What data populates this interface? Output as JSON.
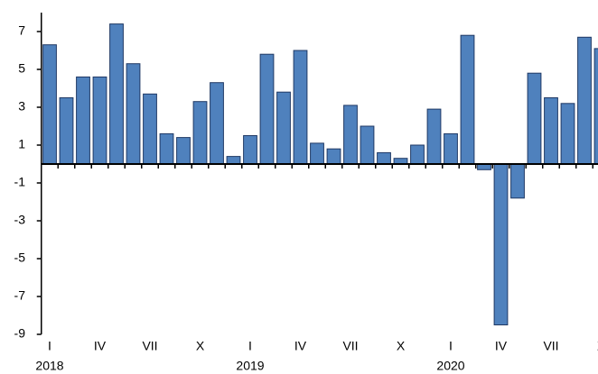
{
  "chart_data": {
    "type": "bar",
    "categories": [
      "I",
      null,
      null,
      "IV",
      null,
      null,
      "VII",
      null,
      null,
      "X",
      null,
      null,
      "I",
      null,
      null,
      "IV",
      null,
      null,
      "VII",
      null,
      null,
      "X",
      null,
      null,
      "I",
      null,
      null,
      "IV",
      null,
      null,
      "VII",
      null,
      null,
      "X"
    ],
    "year_labels": [
      "2018",
      "2019",
      "2020"
    ],
    "values": [
      6.3,
      3.5,
      4.6,
      4.6,
      7.4,
      5.3,
      3.7,
      1.6,
      1.4,
      3.3,
      4.3,
      0.4,
      1.5,
      5.8,
      3.8,
      6.0,
      1.1,
      0.8,
      3.1,
      2.0,
      0.6,
      0.3,
      1.0,
      2.9,
      1.6,
      6.8,
      -0.3,
      -8.5,
      -1.8,
      4.8,
      3.5,
      3.2,
      6.7,
      6.1
    ],
    "color": "#4f81bd",
    "ylim": [
      -9,
      8
    ],
    "yticks": [
      7,
      5,
      3,
      1,
      -1,
      -3,
      -5,
      -7,
      -9
    ]
  }
}
